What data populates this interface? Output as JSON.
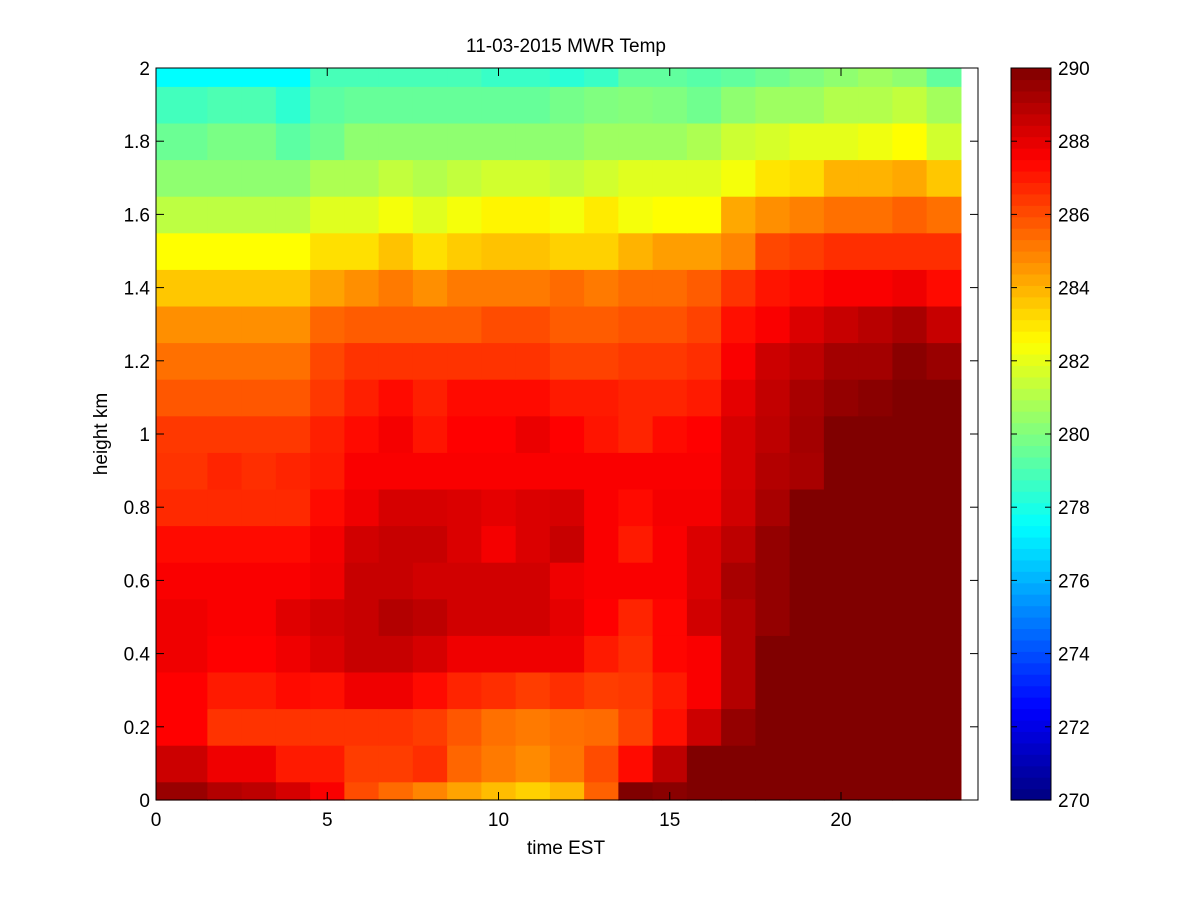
{
  "chart_data": {
    "type": "heatmap",
    "title": "11-03-2015 MWR Temp",
    "xlabel": "time EST",
    "ylabel": "height km",
    "xlim": [
      0,
      24
    ],
    "ylim": [
      0,
      2
    ],
    "x_ticks": [
      0,
      5,
      10,
      15,
      20
    ],
    "y_ticks": [
      0,
      0.2,
      0.4,
      0.6,
      0.8,
      1,
      1.2,
      1.4,
      1.6,
      1.8,
      2
    ],
    "colorbar": {
      "min": 270,
      "max": 290,
      "ticks": [
        270,
        272,
        274,
        276,
        278,
        280,
        282,
        284,
        286,
        288,
        290
      ],
      "colormap": "jet"
    },
    "x_edges": [
      0,
      1.5,
      2.5,
      3.5,
      4.5,
      5.5,
      6.5,
      7.5,
      8.5,
      9.5,
      10.5,
      11.5,
      12.5,
      13.5,
      14.5,
      15.5,
      16.5,
      17.5,
      18.5,
      19.5,
      20.5,
      21.5,
      22.5,
      23.5
    ],
    "y_edges": [
      0,
      0.05,
      0.15,
      0.25,
      0.35,
      0.45,
      0.55,
      0.65,
      0.75,
      0.85,
      0.95,
      1.05,
      1.15,
      1.25,
      1.35,
      1.45,
      1.55,
      1.65,
      1.75,
      1.85,
      1.95,
      2
    ],
    "values": [
      [
        289.5,
        289,
        288.8,
        288.3,
        287.6,
        286,
        285.4,
        284.9,
        284.3,
        283.8,
        283.4,
        283.9,
        285.6,
        290,
        289.8,
        290,
        290,
        290,
        290,
        290,
        290,
        290,
        290
      ],
      [
        288.5,
        287.8,
        287.8,
        287,
        287,
        286.3,
        286.3,
        286.6,
        285.5,
        285.1,
        284.8,
        285.2,
        286,
        287.3,
        288.8,
        290,
        290,
        290,
        290,
        290,
        290,
        290,
        290
      ],
      [
        287.5,
        286.5,
        286.5,
        286.5,
        286.5,
        286.5,
        286.5,
        286.3,
        285.8,
        285.3,
        285.1,
        285.3,
        285.4,
        286.2,
        287.2,
        288.5,
        289.6,
        290,
        290,
        290,
        290,
        290,
        290
      ],
      [
        287.5,
        287,
        287,
        287.3,
        287.2,
        287.8,
        287.8,
        287.3,
        286.8,
        286.6,
        286.3,
        286.6,
        286.3,
        286.4,
        287,
        287.6,
        289,
        290,
        290,
        290,
        290,
        290,
        290
      ],
      [
        287.8,
        287.5,
        287.5,
        287.8,
        288.2,
        288.6,
        288.6,
        288.3,
        287.8,
        287.8,
        287.8,
        287.8,
        287,
        286.6,
        287.4,
        287.6,
        289,
        290,
        290,
        290,
        290,
        290,
        290
      ],
      [
        287.8,
        287.6,
        287.6,
        288.1,
        288.4,
        288.6,
        289,
        288.8,
        288.4,
        288.4,
        288.4,
        288,
        287.5,
        286.8,
        287.4,
        288.4,
        289,
        289.6,
        290,
        290,
        290,
        290,
        290
      ],
      [
        287.6,
        287.6,
        287.6,
        287.6,
        287.8,
        288.6,
        288.6,
        288.4,
        288.4,
        288.4,
        288.4,
        287.8,
        287.6,
        287.6,
        287.6,
        288.2,
        289.2,
        289.6,
        290,
        290,
        290,
        290,
        290
      ],
      [
        287.3,
        287.3,
        287.3,
        287.3,
        287.7,
        288.4,
        288.6,
        288.6,
        288.2,
        287.7,
        288.2,
        288.6,
        287.6,
        287,
        287.6,
        288.2,
        288.8,
        289.6,
        290,
        290,
        290,
        290,
        290
      ],
      [
        286.7,
        286.7,
        286.7,
        286.7,
        287.3,
        287.8,
        288.3,
        288.3,
        288.2,
        288,
        288.2,
        288.3,
        287.6,
        287.3,
        287.7,
        287.7,
        288.4,
        289.2,
        290,
        290,
        290,
        290,
        290
      ],
      [
        286.5,
        286.8,
        286.6,
        286.8,
        287,
        287.6,
        287.6,
        287.6,
        287.6,
        287.6,
        287.6,
        287.6,
        287.6,
        287.6,
        287.6,
        287.6,
        288.3,
        289,
        289.2,
        290,
        290,
        290,
        290
      ],
      [
        286.4,
        286.4,
        286.4,
        286.4,
        286.9,
        287.3,
        287.7,
        287.1,
        287.5,
        287.5,
        287.9,
        287.5,
        287.1,
        286.8,
        287.3,
        287.5,
        288.3,
        288.8,
        289.3,
        290,
        290,
        290,
        290
      ],
      [
        285.8,
        285.8,
        285.8,
        285.8,
        286.4,
        286.9,
        287.3,
        286.9,
        287.3,
        287.3,
        287.3,
        287,
        287,
        286.8,
        286.8,
        287,
        288,
        288.7,
        289.2,
        289.6,
        289.8,
        290,
        290
      ],
      [
        285.3,
        285.3,
        285.3,
        285.3,
        286.1,
        286.5,
        286.5,
        286.5,
        286.5,
        286.5,
        286.5,
        286.2,
        286.2,
        286.4,
        286.4,
        286.6,
        287.6,
        288.5,
        288.8,
        289.3,
        289.3,
        289.8,
        289.5
      ],
      [
        284.7,
        284.7,
        284.7,
        284.7,
        285.5,
        285.7,
        285.7,
        285.7,
        285.7,
        286,
        286,
        285.7,
        285.7,
        285.9,
        285.9,
        286.2,
        287.2,
        287.6,
        288.2,
        288.6,
        288.9,
        289.2,
        288.6
      ],
      [
        283.6,
        283.6,
        283.6,
        283.6,
        284.3,
        284.7,
        285.1,
        284.7,
        285.1,
        285.1,
        285.1,
        285.4,
        285.1,
        285.4,
        285.4,
        285.7,
        286.5,
        287.1,
        287.3,
        287.6,
        287.6,
        287.8,
        287.3
      ],
      [
        282.5,
        282.5,
        282.5,
        282.5,
        283.1,
        283.1,
        283.7,
        283.1,
        283.5,
        283.7,
        283.7,
        283.4,
        283.4,
        284,
        284.4,
        284.4,
        284.9,
        286.1,
        286.3,
        286.6,
        286.6,
        286.6,
        286.6
      ],
      [
        281.2,
        281.2,
        281.2,
        281.2,
        281.9,
        281.9,
        282.3,
        281.9,
        282.3,
        282.7,
        282.7,
        282.3,
        282.9,
        282.3,
        282.5,
        282.5,
        284.2,
        284.7,
        285,
        285.3,
        285.3,
        285.6,
        285.3
      ],
      [
        280.3,
        280.3,
        280.3,
        280.3,
        280.9,
        280.9,
        281.3,
        281,
        281.3,
        281.6,
        281.6,
        281.3,
        281.6,
        281.9,
        281.9,
        281.9,
        282.3,
        283,
        283.2,
        284,
        284,
        284.2,
        283.6
      ],
      [
        279.6,
        279.9,
        279.9,
        279.3,
        279.7,
        280.3,
        280.3,
        280.3,
        280.3,
        280.3,
        280.3,
        280.3,
        280.6,
        280.6,
        280.6,
        280.9,
        281.5,
        281.7,
        282,
        282,
        282.2,
        282.5,
        281.6
      ],
      [
        278.8,
        279,
        279,
        278.4,
        279.3,
        279.5,
        279.5,
        279.5,
        279.5,
        279.5,
        279.5,
        279.8,
        280,
        280.1,
        280,
        279.7,
        280.3,
        280.6,
        280.6,
        281,
        281,
        281.3,
        280.7
      ],
      [
        277.5,
        277.5,
        277.5,
        277.5,
        278.9,
        278.9,
        278.9,
        278.9,
        278.9,
        278.6,
        278.6,
        278.3,
        278.6,
        279.4,
        279.4,
        279.2,
        279.4,
        279.7,
        280,
        280.3,
        280.6,
        280.3,
        279.4
      ]
    ]
  }
}
